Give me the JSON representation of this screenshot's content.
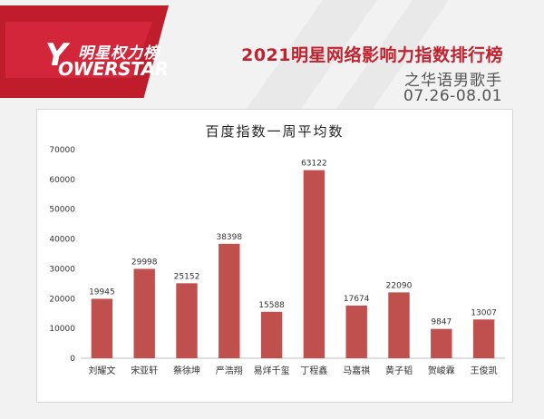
{
  "brand": {
    "name_cn": "明星权力榜",
    "name_en": "OWERSTAR",
    "logo_letter": "Y",
    "colors": {
      "red": "#bf1d2c",
      "red_light": "#d3263a"
    }
  },
  "header": {
    "title": "2021明星网络影响力指数排行榜",
    "subtitle": "之华语男歌手",
    "date_range": "07.26-08.01"
  },
  "chart_data": {
    "type": "bar",
    "title": "百度指数一周平均数",
    "xlabel": "",
    "ylabel": "",
    "ylim": [
      0,
      70000
    ],
    "yticks": [
      0,
      10000,
      20000,
      30000,
      40000,
      50000,
      60000,
      70000
    ],
    "grid": false,
    "bar_color": "#c0504d",
    "categories": [
      "刘耀文",
      "宋亚轩",
      "蔡徐坤",
      "严浩翔",
      "易烊千玺",
      "丁程鑫",
      "马嘉祺",
      "黄子韬",
      "贺峻霖",
      "王俊凯"
    ],
    "values": [
      19945,
      29998,
      25152,
      38398,
      15588,
      63122,
      17674,
      22090,
      9847,
      13007
    ]
  }
}
